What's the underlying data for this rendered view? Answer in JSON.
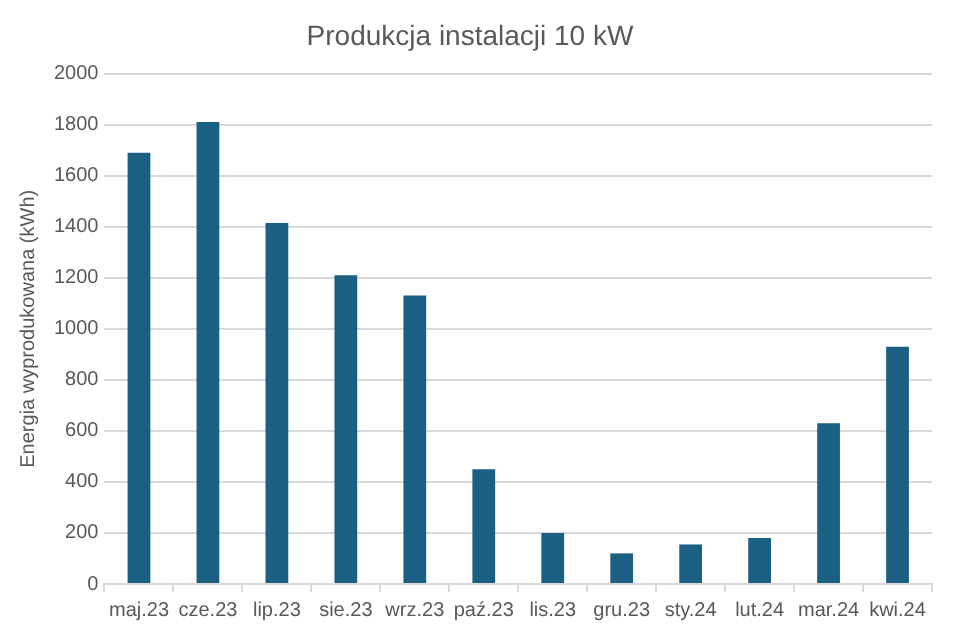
{
  "chart_data": {
    "type": "bar",
    "title": "Produkcja instalacji 10 kW",
    "ylabel": "Energia wyprodukowana (kWh)",
    "categories": [
      "maj.23",
      "cze.23",
      "lip.23",
      "sie.23",
      "wrz.23",
      "paź.23",
      "lis.23",
      "gru.23",
      "sty.24",
      "lut.24",
      "mar.24",
      "kwi.24"
    ],
    "values": [
      1690,
      1810,
      1415,
      1210,
      1130,
      450,
      200,
      120,
      155,
      180,
      630,
      930
    ],
    "color": "#1b5f82",
    "ylim": [
      0,
      2000
    ],
    "yticks": [
      0,
      200,
      400,
      600,
      800,
      1000,
      1200,
      1400,
      1600,
      1800,
      2000
    ],
    "grid": "y",
    "legend": false
  }
}
